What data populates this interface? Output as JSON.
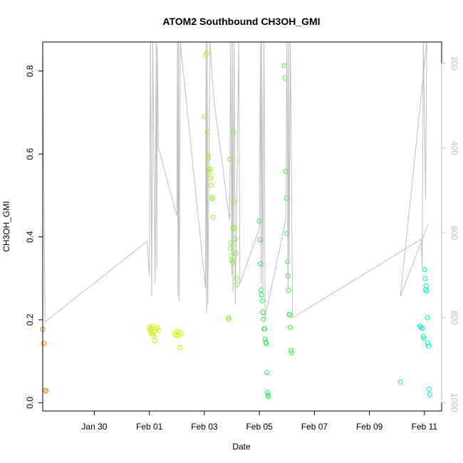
{
  "chart_data": {
    "type": "scatter",
    "title": "ATOM2 Southbound CH3OH_GMI",
    "xlabel": "Date",
    "ylabel": "CH3OH_GMI",
    "x_axis_type": "date",
    "xlim": [
      "2017-01-28T03:00",
      "2017-02-11T15:00"
    ],
    "ylim": [
      -0.02,
      0.87
    ],
    "x_ticks": [
      {
        "date": "2017-01-30",
        "label": "Jan 30"
      },
      {
        "date": "2017-02-01",
        "label": "Feb 01"
      },
      {
        "date": "2017-02-03",
        "label": "Feb 03"
      },
      {
        "date": "2017-02-05",
        "label": "Feb 05"
      },
      {
        "date": "2017-02-07",
        "label": "Feb 07"
      },
      {
        "date": "2017-02-09",
        "label": "Feb 09"
      },
      {
        "date": "2017-02-11",
        "label": "Feb 11"
      }
    ],
    "y_ticks": [
      "0.0",
      "0.2",
      "0.4",
      "0.6",
      "0.8"
    ],
    "right_axis": {
      "reversed": true,
      "ylim": [
        1020,
        150
      ],
      "ticks": [
        "200",
        "400",
        "600",
        "800",
        "1000"
      ],
      "color": "#bebebe",
      "series": [
        [
          "2017-01-28T03:00",
          150
        ],
        [
          "2017-01-28T05:00",
          810
        ],
        [
          "2017-01-31T22:00",
          620
        ],
        [
          "2017-02-01T00:00",
          700
        ],
        [
          "2017-02-01T01:00",
          150
        ],
        [
          "2017-02-01T02:00",
          750
        ],
        [
          "2017-02-01T03:00",
          150
        ],
        [
          "2017-02-01T04:00",
          420
        ],
        [
          "2017-02-01T05:00",
          720
        ],
        [
          "2017-02-01T06:00",
          150
        ],
        [
          "2017-02-01T06:30",
          685
        ],
        [
          "2017-02-01T07:00",
          160
        ],
        [
          "2017-02-01T08:00",
          400
        ],
        [
          "2017-02-02T00:00",
          560
        ],
        [
          "2017-02-02T00:30",
          150
        ],
        [
          "2017-02-02T01:00",
          750
        ],
        [
          "2017-02-02T01:30",
          150
        ],
        [
          "2017-02-02T02:00",
          760
        ],
        [
          "2017-02-02T03:00",
          150
        ],
        [
          "2017-02-03T01:00",
          730
        ],
        [
          "2017-02-03T01:30",
          150
        ],
        [
          "2017-02-03T02:00",
          790
        ],
        [
          "2017-02-03T02:30",
          150
        ],
        [
          "2017-02-03T03:00",
          770
        ],
        [
          "2017-02-03T05:00",
          150
        ],
        [
          "2017-02-03T08:00",
          280
        ],
        [
          "2017-02-03T22:00",
          570
        ],
        [
          "2017-02-03T23:00",
          150
        ],
        [
          "2017-02-04T00:00",
          700
        ],
        [
          "2017-02-04T00:30",
          150
        ],
        [
          "2017-02-04T01:00",
          740
        ],
        [
          "2017-02-04T02:00",
          150
        ],
        [
          "2017-02-04T03:00",
          770
        ],
        [
          "2017-02-04T05:00",
          370
        ],
        [
          "2017-02-04T06:00",
          150
        ],
        [
          "2017-02-04T07:00",
          720
        ],
        [
          "2017-02-05T00:00",
          590
        ],
        [
          "2017-02-05T01:00",
          150
        ],
        [
          "2017-02-05T01:30",
          720
        ],
        [
          "2017-02-05T02:00",
          150
        ],
        [
          "2017-02-05T03:00",
          730
        ],
        [
          "2017-02-05T04:00",
          150
        ],
        [
          "2017-02-05T05:00",
          800
        ],
        [
          "2017-02-05T23:00",
          570
        ],
        [
          "2017-02-06T00:00",
          150
        ],
        [
          "2017-02-06T01:00",
          730
        ],
        [
          "2017-02-06T01:30",
          150
        ],
        [
          "2017-02-06T02:00",
          660
        ],
        [
          "2017-02-06T03:00",
          150
        ],
        [
          "2017-02-06T05:00",
          800
        ],
        [
          "2017-02-10T21:00",
          615
        ],
        [
          "2017-02-10T22:00",
          680
        ],
        [
          "2017-02-10T23:00",
          150
        ],
        [
          "2017-02-11T01:00",
          520
        ],
        [
          "2017-02-11T02:00",
          150
        ],
        [
          "2017-02-10T03:00",
          750
        ],
        [
          "2017-02-11T03:00",
          580
        ]
      ]
    },
    "color_by": "time",
    "series": [
      {
        "color": "#ff8000",
        "points": [
          [
            "2017-01-28T03:00",
            0.177
          ],
          [
            "2017-01-28T04:00",
            0.143
          ],
          [
            "2017-01-28T05:00",
            0.03
          ],
          [
            "2017-01-28T06:00",
            0.028
          ]
        ]
      },
      {
        "color": "#ccee00",
        "points": [
          [
            "2017-02-01T00:00",
            0.183
          ],
          [
            "2017-02-01T00:30",
            0.176
          ],
          [
            "2017-02-01T01:00",
            0.172
          ],
          [
            "2017-02-01T01:30",
            0.168
          ],
          [
            "2017-02-01T02:00",
            0.179
          ],
          [
            "2017-02-01T02:30",
            0.185
          ],
          [
            "2017-02-01T03:00",
            0.165
          ],
          [
            "2017-02-01T03:30",
            0.171
          ],
          [
            "2017-02-01T04:00",
            0.16
          ],
          [
            "2017-02-01T05:00",
            0.15
          ],
          [
            "2017-02-01T06:00",
            0.178
          ],
          [
            "2017-02-01T07:00",
            0.181
          ],
          [
            "2017-02-01T08:00",
            0.174
          ]
        ]
      },
      {
        "color": "#d8f000",
        "points": [
          [
            "2017-02-01T22:00",
            0.168
          ],
          [
            "2017-02-01T23:00",
            0.163
          ],
          [
            "2017-02-02T00:00",
            0.172
          ],
          [
            "2017-02-02T01:00",
            0.161
          ],
          [
            "2017-02-02T02:00",
            0.17
          ],
          [
            "2017-02-02T03:00",
            0.133
          ],
          [
            "2017-02-02T04:00",
            0.166
          ]
        ]
      },
      {
        "color": "#99ee22",
        "points": [
          [
            "2017-02-03T00:00",
            0.69
          ],
          [
            "2017-02-03T01:00",
            0.837
          ],
          [
            "2017-02-03T02:00",
            0.843
          ],
          [
            "2017-02-03T02:30",
            0.652
          ],
          [
            "2017-02-03T03:00",
            0.598
          ],
          [
            "2017-02-03T03:30",
            0.59
          ],
          [
            "2017-02-03T04:00",
            0.562
          ],
          [
            "2017-02-03T04:30",
            0.556
          ],
          [
            "2017-02-03T05:00",
            0.564
          ],
          [
            "2017-02-03T05:30",
            0.542
          ],
          [
            "2017-02-03T06:00",
            0.524
          ],
          [
            "2017-02-03T06:30",
            0.496
          ],
          [
            "2017-02-03T07:00",
            0.492
          ],
          [
            "2017-02-03T07:30",
            0.447
          ]
        ]
      },
      {
        "color": "#88ee33",
        "points": [
          [
            "2017-02-03T21:00",
            0.205
          ],
          [
            "2017-02-03T21:30",
            0.201
          ],
          [
            "2017-02-03T22:00",
            0.587
          ],
          [
            "2017-02-03T22:30",
            0.372
          ],
          [
            "2017-02-03T23:00",
            0.385
          ],
          [
            "2017-02-03T23:30",
            0.355
          ],
          [
            "2017-02-04T00:00",
            0.345
          ],
          [
            "2017-02-04T00:30",
            0.338
          ],
          [
            "2017-02-04T01:00",
            0.42
          ],
          [
            "2017-02-04T01:30",
            0.652
          ],
          [
            "2017-02-04T02:00",
            0.485
          ],
          [
            "2017-02-04T02:30",
            0.422
          ],
          [
            "2017-02-04T03:00",
            0.395
          ],
          [
            "2017-02-04T03:30",
            0.36
          ],
          [
            "2017-02-04T04:00",
            0.3
          ],
          [
            "2017-02-04T04:30",
            0.285
          ]
        ]
      },
      {
        "color": "#22ee55",
        "points": [
          [
            "2017-02-05T00:00",
            0.438
          ],
          [
            "2017-02-05T00:30",
            0.393
          ],
          [
            "2017-02-05T01:00",
            0.335
          ],
          [
            "2017-02-05T01:30",
            0.272
          ],
          [
            "2017-02-05T02:00",
            0.26
          ],
          [
            "2017-02-05T02:30",
            0.246
          ],
          [
            "2017-02-05T03:00",
            0.218
          ],
          [
            "2017-02-05T03:30",
            0.201
          ],
          [
            "2017-02-05T04:00",
            0.178
          ],
          [
            "2017-02-05T04:30",
            0.178
          ],
          [
            "2017-02-05T05:00",
            0.153
          ],
          [
            "2017-02-05T05:30",
            0.146
          ],
          [
            "2017-02-05T06:00",
            0.143
          ],
          [
            "2017-02-05T06:30",
            0.073
          ],
          [
            "2017-02-05T07:00",
            0.025
          ],
          [
            "2017-02-05T07:30",
            0.018
          ],
          [
            "2017-02-05T08:00",
            0.014
          ]
        ]
      },
      {
        "color": "#44ee44",
        "points": [
          [
            "2017-02-05T22:00",
            0.813
          ],
          [
            "2017-02-05T22:30",
            0.783
          ],
          [
            "2017-02-05T23:00",
            0.558
          ],
          [
            "2017-02-05T23:30",
            0.493
          ],
          [
            "2017-02-06T00:00",
            0.408
          ],
          [
            "2017-02-06T00:30",
            0.34
          ],
          [
            "2017-02-06T01:00",
            0.307
          ],
          [
            "2017-02-06T01:30",
            0.271
          ],
          [
            "2017-02-06T02:00",
            0.213
          ],
          [
            "2017-02-06T02:30",
            0.212
          ],
          [
            "2017-02-06T03:00",
            0.182
          ],
          [
            "2017-02-06T03:30",
            0.126
          ],
          [
            "2017-02-06T04:00",
            0.12
          ]
        ]
      },
      {
        "color": "#00ee99",
        "points": [
          [
            "2017-02-10T03:00",
            0.05
          ]
        ]
      },
      {
        "color": "#00eecc",
        "points": [
          [
            "2017-02-10T20:00",
            0.185
          ],
          [
            "2017-02-10T21:00",
            0.182
          ],
          [
            "2017-02-10T22:00",
            0.179
          ],
          [
            "2017-02-10T23:00",
            0.16
          ],
          [
            "2017-02-10T23:30",
            0.155
          ],
          [
            "2017-02-11T00:00",
            0.321
          ],
          [
            "2017-02-11T00:30",
            0.299
          ],
          [
            "2017-02-11T01:00",
            0.273
          ],
          [
            "2017-02-11T01:30",
            0.282
          ],
          [
            "2017-02-11T02:00",
            0.269
          ],
          [
            "2017-02-11T02:30",
            0.205
          ],
          [
            "2017-02-11T03:00",
            0.144
          ],
          [
            "2017-02-11T03:30",
            0.137
          ],
          [
            "2017-02-11T04:00",
            0.033
          ],
          [
            "2017-02-11T04:30",
            0.02
          ]
        ]
      }
    ]
  }
}
